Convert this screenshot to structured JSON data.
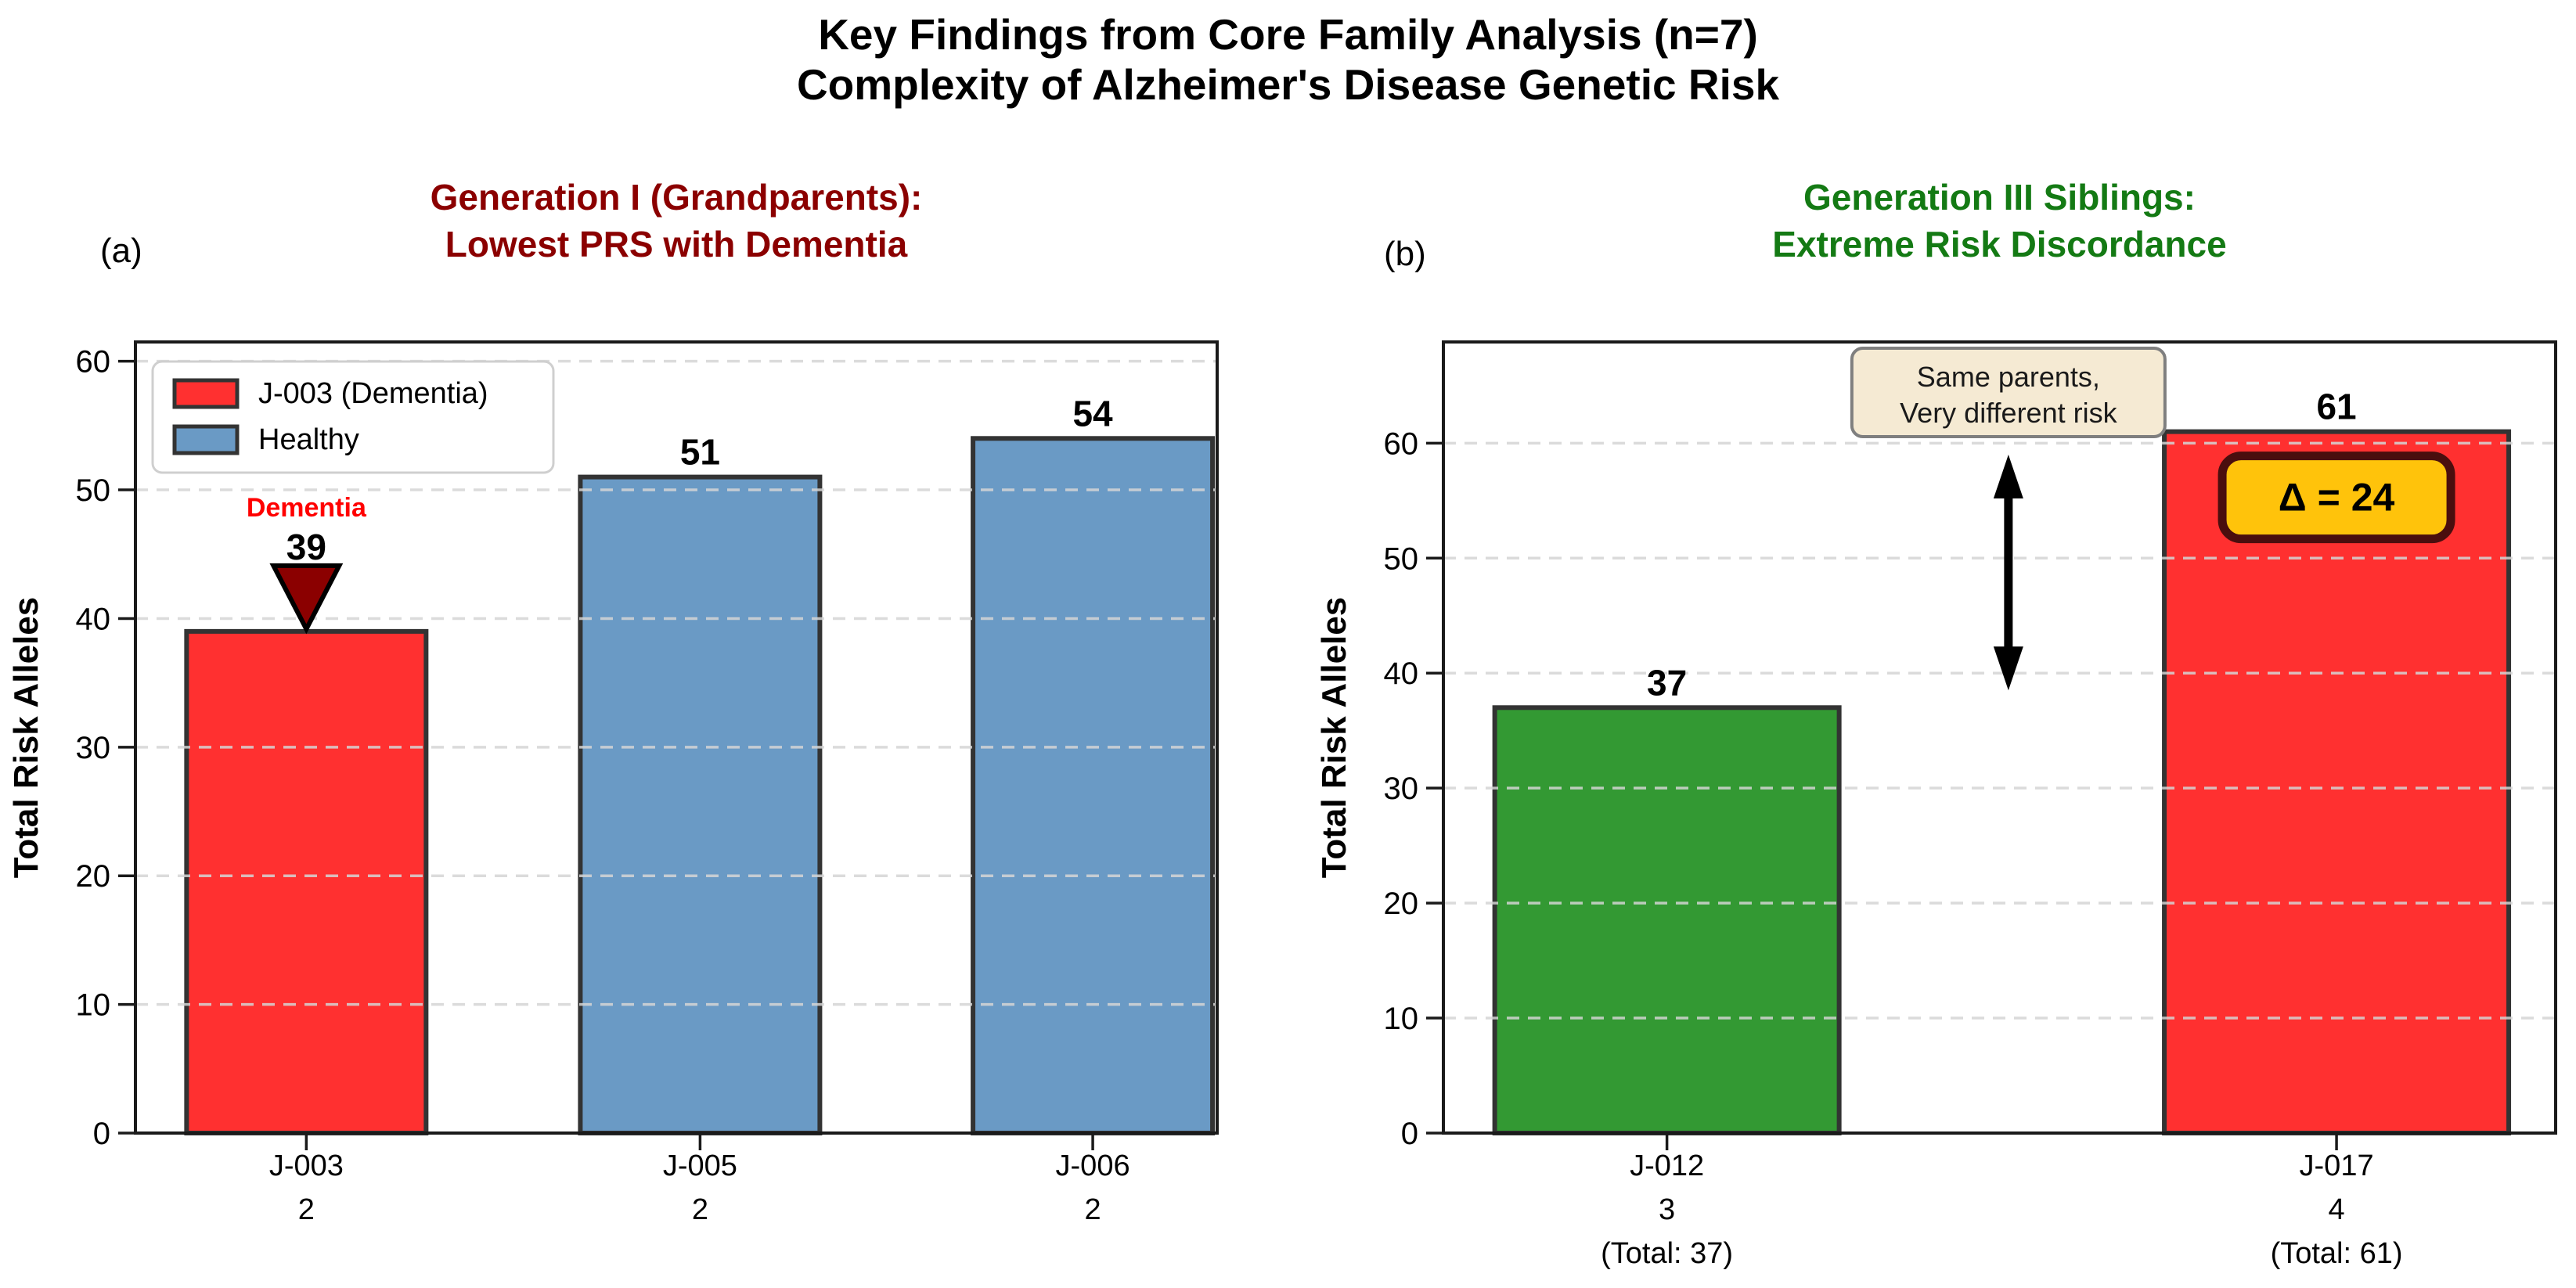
{
  "title": {
    "line1": "Key Findings from Core Family Analysis (n=7)",
    "line2": "Complexity of Alzheimer's Disease Genetic Risk"
  },
  "panels": [
    {
      "label": "(a)"
    },
    {
      "label": "(b)"
    }
  ],
  "chart_data": [
    {
      "type": "bar",
      "title_lines": [
        "Generation I (Grandparents):",
        "Lowest PRS with Dementia"
      ],
      "title_color": "#8B0000",
      "ylabel": "Total Risk Alleles",
      "categories": [
        "J-003",
        "J-005",
        "J-006"
      ],
      "x_tick_lines": [
        [
          "J-003",
          "2"
        ],
        [
          "J-005",
          "2"
        ],
        [
          "J-006",
          "2"
        ]
      ],
      "values": [
        39,
        51,
        54
      ],
      "bar_value_labels": [
        "39",
        "51",
        "54"
      ],
      "bar_colors": [
        "#FF3030",
        "#6A9AC5",
        "#6A9AC5"
      ],
      "ylim": [
        0,
        61.5
      ],
      "yticks": [
        0,
        10,
        20,
        30,
        40,
        50,
        60
      ],
      "grid": true,
      "legend": {
        "position": "upper-left",
        "entries": [
          {
            "label": "J-003 (Dementia)",
            "color": "#FF3030"
          },
          {
            "label": "Healthy",
            "color": "#6A9AC5"
          }
        ]
      },
      "annotation": {
        "text": "Dementia",
        "text_color": "#FF0000",
        "marker": "triangle-down",
        "marker_fill": "#8B0000",
        "marker_edge": "#000000",
        "target_index": 0
      }
    },
    {
      "type": "bar",
      "title_lines": [
        "Generation III Siblings:",
        "Extreme Risk Discordance"
      ],
      "title_color": "#147A14",
      "ylabel": "Total Risk Alleles",
      "categories": [
        "J-012",
        "J-017"
      ],
      "x_tick_lines": [
        [
          "J-012",
          "3",
          "(Total: 37)"
        ],
        [
          "J-017",
          "4",
          "(Total: 61)"
        ]
      ],
      "values": [
        37,
        61
      ],
      "bar_value_labels": [
        "37",
        "61"
      ],
      "bar_colors": [
        "#339933",
        "#FF3030"
      ],
      "ylim": [
        0,
        68.8
      ],
      "yticks": [
        0,
        10,
        20,
        30,
        40,
        50,
        60
      ],
      "grid": true,
      "callout": {
        "lines": [
          "Same parents,",
          "Very different risk"
        ],
        "fill": "#F5EAD3",
        "border": "#7F7F7F",
        "text_color": "#1A1A1A"
      },
      "arrow": {
        "style": "double-headed",
        "color": "#000000",
        "span_values": [
          38.5,
          59.0
        ]
      },
      "delta_box": {
        "text": "Δ = 24",
        "fill": "#FFC30B",
        "border": "#4A0E0E",
        "text_color": "#000000",
        "target_index": 1
      }
    }
  ],
  "style": {
    "background": "#FFFFFF",
    "grid_color": "#D5D5D5",
    "spine_color": "#1A1A1A",
    "bar_edge_color": "#333333",
    "tick_text_color": "#000000",
    "legend_border_color": "#CFCFCF"
  }
}
